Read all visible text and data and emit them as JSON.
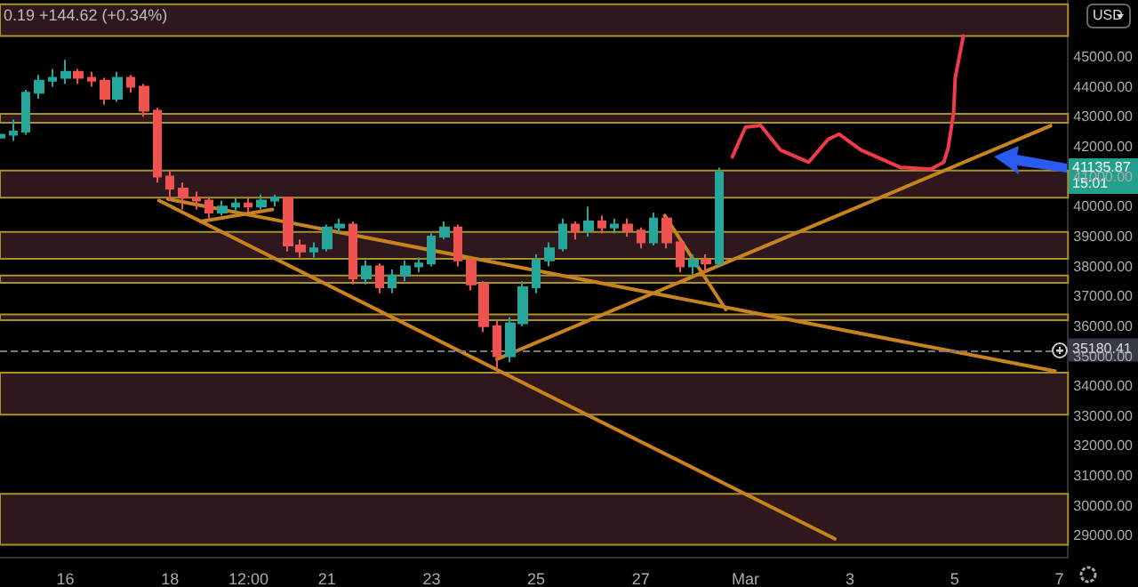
{
  "chart_data": {
    "type": "candlestick",
    "x": [
      "--02-14T18:00",
      "--02-15T00:00",
      "--02-15T06:00",
      "--02-15T12:00",
      "--02-15T18:00",
      "--02-16T00:00",
      "--02-16T06:00",
      "--02-16T12:00",
      "--02-16T18:00",
      "--02-17T00:00",
      "--02-17T06:00",
      "--02-17T12:00",
      "--02-17T18:00",
      "--02-18T00:00",
      "--02-18T06:00",
      "--02-18T12:00",
      "--02-18T18:00",
      "--02-19T00:00",
      "--02-19T06:00",
      "--02-19T12:00",
      "--02-19T18:00",
      "--02-20T00:00",
      "--02-20T06:00",
      "--02-20T12:00",
      "--02-20T18:00",
      "--02-21T00:00",
      "--02-21T06:00",
      "--02-21T12:00",
      "--02-21T18:00",
      "--02-22T00:00",
      "--02-22T06:00",
      "--02-22T12:00",
      "--02-22T18:00",
      "--02-23T00:00",
      "--02-23T06:00",
      "--02-23T12:00",
      "--02-23T18:00",
      "--02-24T00:00",
      "--02-24T06:00",
      "--02-24T12:00",
      "--02-24T18:00",
      "--02-25T00:00",
      "--02-25T06:00",
      "--02-25T12:00",
      "--02-25T18:00",
      "--02-26T00:00",
      "--02-26T06:00",
      "--02-26T12:00",
      "--02-26T18:00",
      "--02-27T00:00",
      "--02-27T06:00",
      "--02-27T12:00",
      "--02-27T18:00",
      "--02-28T00:00",
      "--02-28T06:00",
      "--02-28T12:00"
    ],
    "ohlc": [
      [
        42300,
        42600,
        42100,
        42400
      ],
      [
        42400,
        42900,
        42200,
        42500
      ],
      [
        42500,
        43900,
        42400,
        43800
      ],
      [
        43800,
        44400,
        43600,
        44200
      ],
      [
        44200,
        44600,
        44000,
        44300
      ],
      [
        44300,
        44900,
        44100,
        44500
      ],
      [
        44500,
        44600,
        44100,
        44300
      ],
      [
        44300,
        44500,
        44000,
        44200
      ],
      [
        44200,
        44300,
        43400,
        43600
      ],
      [
        43600,
        44500,
        43500,
        44300
      ],
      [
        44300,
        44400,
        43800,
        44000
      ],
      [
        44000,
        44100,
        43000,
        43200
      ],
      [
        43200,
        43300,
        40800,
        41000
      ],
      [
        41000,
        41200,
        40200,
        40600
      ],
      [
        40600,
        40800,
        39900,
        40300
      ],
      [
        40300,
        40500,
        39900,
        40200
      ],
      [
        40200,
        40300,
        39600,
        39800
      ],
      [
        39800,
        40200,
        39700,
        40000
      ],
      [
        40000,
        40300,
        39800,
        40100
      ],
      [
        40100,
        40300,
        39800,
        40000
      ],
      [
        40000,
        40400,
        39900,
        40200
      ],
      [
        40200,
        40400,
        40000,
        40300
      ],
      [
        40300,
        40300,
        38500,
        38700
      ],
      [
        38700,
        38900,
        38300,
        38500
      ],
      [
        38500,
        38800,
        38300,
        38600
      ],
      [
        38600,
        39400,
        38500,
        39300
      ],
      [
        39300,
        39600,
        39100,
        39400
      ],
      [
        39400,
        39500,
        37400,
        37600
      ],
      [
        37600,
        38200,
        37400,
        38000
      ],
      [
        38000,
        38100,
        37100,
        37300
      ],
      [
        37300,
        37900,
        37100,
        37700
      ],
      [
        37700,
        38200,
        37500,
        38000
      ],
      [
        38000,
        38300,
        37800,
        38100
      ],
      [
        38100,
        39100,
        38000,
        39000
      ],
      [
        39000,
        39500,
        38900,
        39300
      ],
      [
        39300,
        39400,
        38000,
        38200
      ],
      [
        38200,
        38300,
        37200,
        37400
      ],
      [
        37400,
        37500,
        35800,
        36000
      ],
      [
        36000,
        36200,
        34500,
        35000
      ],
      [
        35000,
        36300,
        34800,
        36100
      ],
      [
        36100,
        37500,
        36000,
        37300
      ],
      [
        37300,
        38400,
        37100,
        38200
      ],
      [
        38200,
        38800,
        38000,
        38600
      ],
      [
        38600,
        39600,
        38500,
        39400
      ],
      [
        39400,
        39500,
        38900,
        39200
      ],
      [
        39200,
        40000,
        39000,
        39500
      ],
      [
        39500,
        39700,
        39100,
        39300
      ],
      [
        39300,
        39600,
        39100,
        39400
      ],
      [
        39400,
        39600,
        39000,
        39200
      ],
      [
        39200,
        39300,
        38600,
        38800
      ],
      [
        38800,
        39800,
        38700,
        39600
      ],
      [
        39600,
        39700,
        38600,
        38800
      ],
      [
        38800,
        38900,
        37800,
        38000
      ],
      [
        38000,
        38400,
        37700,
        38200
      ],
      [
        38200,
        38400,
        37800,
        38100
      ],
      [
        38100,
        41300,
        38000,
        41135.87
      ]
    ],
    "series": [
      {
        "type": "line",
        "color": "#c8821e",
        "x": [
          "--02-17T23:00",
          "--03-06T22:00"
        ],
        "values": [
          40250,
          34500
        ]
      },
      {
        "type": "line",
        "color": "#c8821e",
        "x": [
          "--02-17T19:00",
          "--03-02T17:00"
        ],
        "values": [
          40200,
          28900
        ]
      },
      {
        "type": "line",
        "color": "#c8821e",
        "x": [
          "--02-18T14:00",
          "--02-19T23:00"
        ],
        "values": [
          39500,
          39900
        ]
      },
      {
        "type": "line",
        "color": "#c8821e",
        "x": [
          "--02-24T06:00",
          "--03-06T20:00"
        ],
        "values": [
          34900,
          42700
        ]
      },
      {
        "type": "line",
        "color": "#c8821e",
        "x": [
          "--02-27T11:00",
          "--02-28T15:00"
        ],
        "values": [
          39700,
          36560
        ]
      },
      {
        "type": "line",
        "color": "#f03a4a",
        "x": [
          "--02-28T18:00",
          "--03-01T00:00",
          "--03-01T07:00",
          "--03-01T16:00",
          "--03-02T05:00",
          "--03-02T14:00",
          "--03-02T19:00",
          "--03-03T05:00",
          "--03-03T23:00",
          "--03-04T13:00",
          "--03-04T19:00",
          "--03-04T21:00",
          "--03-04T23:30",
          "--03-05T00:15",
          "--03-05T04:00"
        ],
        "values": [
          41660,
          42650,
          42710,
          41890,
          41480,
          42250,
          42420,
          41890,
          41310,
          41250,
          41480,
          41950,
          43120,
          44300,
          45700
        ]
      }
    ],
    "xlim": [
      "--02-14T18:00",
      "--03-07T04:00"
    ],
    "xticks": [
      {
        "value": "--02-16",
        "label": "16"
      },
      {
        "value": "--02-18",
        "label": "18"
      },
      {
        "value": "--02-19T12:00",
        "label": "12:00"
      },
      {
        "value": "--02-21",
        "label": "21"
      },
      {
        "value": "--02-23",
        "label": "23"
      },
      {
        "value": "--02-25",
        "label": "25"
      },
      {
        "value": "--02-27",
        "label": "27"
      },
      {
        "value": "--03-01",
        "label": "Mar"
      },
      {
        "value": "--03-03",
        "label": "3"
      },
      {
        "value": "--03-05",
        "label": "5"
      },
      {
        "value": "--03-07",
        "label": "7"
      }
    ],
    "ylim": [
      28300,
      46900
    ],
    "yticks": [
      {
        "value": 29000,
        "label": "29000.00"
      },
      {
        "value": 30000,
        "label": "30000.00"
      },
      {
        "value": 31000,
        "label": "31000.00"
      },
      {
        "value": 32000,
        "label": "32000.00"
      },
      {
        "value": 33000,
        "label": "33000.00"
      },
      {
        "value": 34000,
        "label": "34000.00"
      },
      {
        "value": 35000,
        "label": "35000.00"
      },
      {
        "value": 36000,
        "label": "36000.00"
      },
      {
        "value": 37000,
        "label": "37000.00"
      },
      {
        "value": 38000,
        "label": "38000.00"
      },
      {
        "value": 39000,
        "label": "39000.00"
      },
      {
        "value": 40000,
        "label": "40000.00"
      },
      {
        "value": 41000,
        "label": "41000.00"
      },
      {
        "value": 42000,
        "label": "42000.00"
      },
      {
        "value": 43000,
        "label": "43000.00"
      },
      {
        "value": 44000,
        "label": "44000.00"
      },
      {
        "value": 45000,
        "label": "45000.00"
      }
    ],
    "bands": [
      {
        "axis": "y",
        "from": 45700,
        "to": 46760,
        "color": "#2e181d"
      },
      {
        "axis": "y",
        "from": 42800,
        "to": 43100,
        "color": "#2e181d"
      },
      {
        "axis": "y",
        "from": 40300,
        "to": 41200,
        "color": "#2e181d"
      },
      {
        "axis": "y",
        "from": 38250,
        "to": 39150,
        "color": "#2e181d"
      },
      {
        "axis": "y",
        "from": 37450,
        "to": 37700,
        "color": "#2e181d"
      },
      {
        "axis": "y",
        "from": 36200,
        "to": 36400,
        "color": "#2e181d"
      },
      {
        "axis": "y",
        "from": 33050,
        "to": 34450,
        "color": "#2e181d"
      },
      {
        "axis": "y",
        "from": 28700,
        "to": 30400,
        "color": "#2e181d"
      }
    ],
    "ref_lines": [
      {
        "axis": "y",
        "value": 35180.41,
        "label": "35180.41",
        "color": "#777777",
        "line_style": "dashed"
      }
    ],
    "annotations": [
      "0.19 +144.62 (+0.34%)",
      "USD",
      "41135.87",
      "15:01"
    ],
    "grid": false
  }
}
